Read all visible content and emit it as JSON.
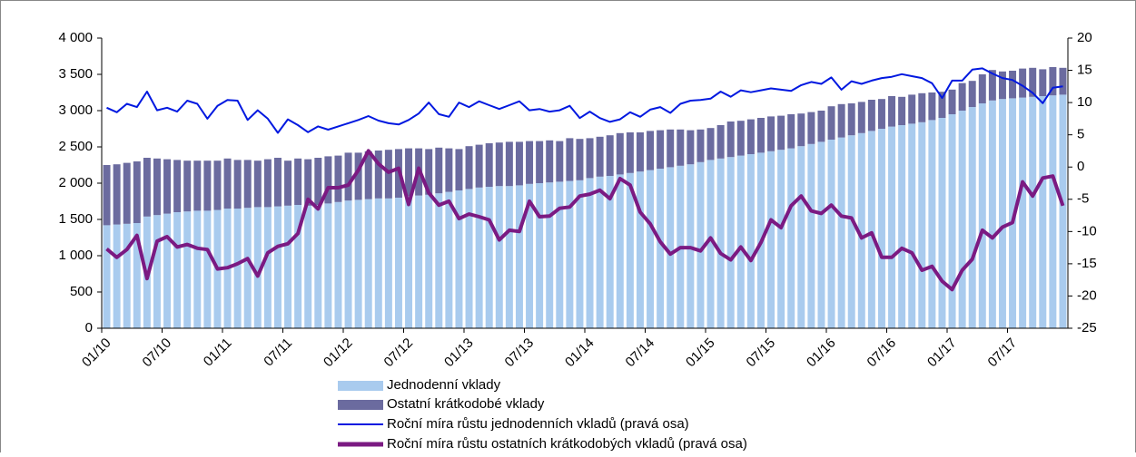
{
  "chart_data": {
    "type": "bar",
    "categories": [
      "01/10",
      null,
      null,
      null,
      null,
      null,
      "07/10",
      null,
      null,
      null,
      null,
      null,
      "01/11",
      null,
      null,
      null,
      null,
      null,
      "07/11",
      null,
      null,
      null,
      null,
      null,
      "01/12",
      null,
      null,
      null,
      null,
      null,
      "07/12",
      null,
      null,
      null,
      null,
      null,
      "01/13",
      null,
      null,
      null,
      null,
      null,
      "07/13",
      null,
      null,
      null,
      null,
      null,
      "01/14",
      null,
      null,
      null,
      null,
      null,
      "07/14",
      null,
      null,
      null,
      null,
      null,
      "01/15",
      null,
      null,
      null,
      null,
      null,
      "07/15",
      null,
      null,
      null,
      null,
      null,
      "01/16",
      null,
      null,
      null,
      null,
      null,
      "07/16",
      null,
      null,
      null,
      null,
      null,
      "01/17",
      null,
      null,
      null,
      null,
      null,
      "07/17",
      null,
      null,
      null,
      null,
      null
    ],
    "series": [
      {
        "name": "Jednodenní vklady",
        "type": "bar",
        "color": "#a9cbee",
        "values": [
          1420,
          1430,
          1440,
          1450,
          1540,
          1560,
          1580,
          1600,
          1610,
          1620,
          1620,
          1630,
          1650,
          1650,
          1660,
          1670,
          1670,
          1680,
          1690,
          1700,
          1690,
          1700,
          1720,
          1740,
          1760,
          1770,
          1780,
          1790,
          1790,
          1800,
          1820,
          1830,
          1840,
          1860,
          1880,
          1900,
          1920,
          1940,
          1950,
          1960,
          1960,
          1970,
          1990,
          2000,
          2010,
          2020,
          2030,
          2040,
          2070,
          2090,
          2100,
          2120,
          2140,
          2160,
          2180,
          2200,
          2220,
          2240,
          2260,
          2290,
          2320,
          2340,
          2360,
          2380,
          2400,
          2420,
          2440,
          2460,
          2480,
          2510,
          2540,
          2570,
          2600,
          2630,
          2660,
          2690,
          2720,
          2750,
          2780,
          2800,
          2820,
          2840,
          2870,
          2900,
          2950,
          3000,
          3050,
          3100,
          3140,
          3160,
          3170,
          3180,
          3190,
          3200,
          3210,
          3220
        ]
      },
      {
        "name": "Ostatní krátkodobé vklady",
        "type": "bar",
        "color": "#6b6b9f",
        "values": [
          830,
          830,
          840,
          850,
          810,
          780,
          750,
          720,
          700,
          690,
          690,
          680,
          690,
          670,
          660,
          640,
          660,
          670,
          620,
          640,
          640,
          650,
          650,
          640,
          660,
          650,
          660,
          660,
          670,
          670,
          660,
          650,
          630,
          630,
          600,
          570,
          590,
          590,
          600,
          600,
          610,
          600,
          590,
          580,
          580,
          560,
          590,
          570,
          550,
          550,
          560,
          570,
          560,
          540,
          540,
          530,
          520,
          500,
          470,
          450,
          440,
          460,
          490,
          480,
          480,
          480,
          480,
          470,
          470,
          450,
          440,
          430,
          460,
          460,
          440,
          430,
          430,
          410,
          420,
          390,
          400,
          400,
          380,
          360,
          340,
          380,
          360,
          400,
          420,
          380,
          380,
          400,
          400,
          370,
          390,
          370
        ]
      },
      {
        "name": "Roční míra růstu jednodenních vkladů (pravá osa)",
        "type": "line",
        "axis": "y2",
        "color": "#0018e0",
        "values": [
          9.2,
          8.5,
          9.8,
          9.3,
          11.7,
          8.8,
          9.2,
          8.6,
          10.3,
          9.8,
          7.5,
          9.5,
          10.4,
          10.3,
          7.3,
          8.8,
          7.5,
          5.3,
          7.4,
          6.5,
          5.4,
          6.3,
          5.8,
          6.3,
          6.8,
          7.3,
          7.9,
          7.2,
          6.8,
          6.6,
          7.3,
          8.3,
          10.0,
          8.2,
          7.8,
          10.0,
          9.3,
          10.2,
          9.6,
          9.0,
          9.6,
          10.2,
          8.8,
          9.0,
          8.6,
          8.8,
          9.5,
          7.6,
          8.6,
          7.6,
          7.0,
          7.4,
          8.5,
          7.8,
          8.9,
          9.3,
          8.4,
          9.8,
          10.3,
          10.4,
          10.6,
          11.7,
          10.9,
          11.9,
          11.6,
          11.9,
          12.2,
          12.0,
          11.8,
          12.7,
          13.2,
          12.9,
          13.9,
          12.0,
          13.3,
          12.9,
          13.4,
          13.8,
          14.0,
          14.4,
          14.1,
          13.8,
          13.0,
          10.7,
          13.4,
          13.4,
          15.1,
          15.3,
          14.5,
          13.8,
          13.5,
          12.6,
          11.5,
          9.9,
          12.3,
          12.5
        ]
      },
      {
        "name": "Roční míra růstu ostatních krátkodobých vkladů (pravá osa)",
        "type": "line",
        "axis": "y2",
        "color": "#7b1a82",
        "values": [
          -12.7,
          -14,
          -12.8,
          -10.6,
          -17.3,
          -11.5,
          -10.8,
          -12.4,
          -12,
          -12.6,
          -12.8,
          -15.8,
          -15.6,
          -15,
          -14.2,
          -16.9,
          -13.3,
          -12.3,
          -11.9,
          -10.3,
          -5,
          -6.5,
          -3.2,
          -3.2,
          -2.8,
          -0.5,
          2.5,
          0.5,
          -0.8,
          -0.2,
          -5.8,
          -0.2,
          -4,
          -5.9,
          -5.3,
          -8,
          -7.3,
          -7.7,
          -8.2,
          -11.3,
          -9.8,
          -10,
          -5.3,
          -7.7,
          -7.6,
          -6.4,
          -6.2,
          -4.5,
          -4.2,
          -3.6,
          -4.9,
          -1.8,
          -2.8,
          -7,
          -8.8,
          -11.6,
          -13.5,
          -12.5,
          -12.5,
          -13,
          -11,
          -13.4,
          -14.4,
          -12.4,
          -14.5,
          -11.7,
          -8.2,
          -9.4,
          -6,
          -4.5,
          -6.8,
          -7.2,
          -5.9,
          -7.6,
          -7.9,
          -11,
          -10.2,
          -14,
          -14,
          -12.6,
          -13.3,
          -16,
          -15.4,
          -17.7,
          -19,
          -16,
          -14.3,
          -9.8,
          -11,
          -9.3,
          -8.6,
          -2.3,
          -4.5,
          -1.7,
          -1.4,
          -6
        ]
      }
    ],
    "ylim": [
      0,
      4000
    ],
    "yticks": [
      0,
      500,
      {
        "value": 1000,
        "label": "1 000"
      },
      {
        "value": 1500,
        "label": "1 500"
      },
      {
        "value": 2000,
        "label": "2 000"
      },
      {
        "value": 2500,
        "label": "2 500"
      },
      {
        "value": 3000,
        "label": "3 000"
      },
      {
        "value": 3500,
        "label": "3 500"
      },
      {
        "value": 4000,
        "label": "4 000"
      }
    ],
    "y2lim": [
      -25,
      20
    ],
    "y2ticks": [
      -25,
      -20,
      -15,
      -10,
      -5,
      0,
      5,
      10,
      15,
      20
    ],
    "grid": false,
    "legend": "bottom"
  }
}
